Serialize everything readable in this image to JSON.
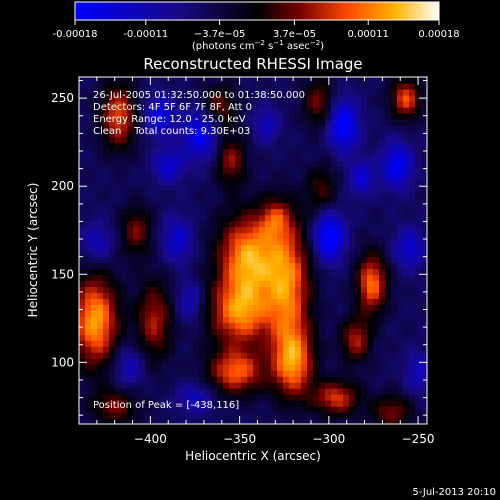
{
  "chart_data": {
    "type": "heatmap",
    "title": "Reconstructed RHESSI Image",
    "xlabel": "Heliocentric X (arcsec)",
    "ylabel": "Heliocentric Y (arcsec)",
    "xlim": [
      -440,
      -245
    ],
    "ylim": [
      65,
      262
    ],
    "xticks": [
      -400,
      -350,
      -300,
      -250
    ],
    "yticks": [
      100,
      150,
      200,
      250
    ],
    "colorbar": {
      "range": [
        -0.00018,
        0.00018
      ],
      "tick_values": [
        -0.00018,
        -0.00011,
        -3.7e-05,
        3.7e-05,
        0.00011,
        0.00018
      ],
      "tick_labels": [
        "-0.00018",
        "-0.00011",
        "−3.7e−05",
        "3.7e−05",
        "0.00011",
        "0.00018"
      ],
      "unit_main": "(photons cm",
      "unit_exp1": "−2",
      "unit_mid": " s",
      "unit_exp2": "−1",
      "unit_tail": " asec",
      "unit_exp3": "−2",
      "unit_close": ")",
      "colors": [
        "#0000ff",
        "#1a0a8a",
        "#000000",
        "#7a0000",
        "#ff4a00",
        "#ffb400",
        "#ffffff"
      ]
    },
    "annotations": {
      "line1": "26-Jul-2005 01:32:50.000 to 01:38:50.000",
      "line2": "Detectors: 4F 5F 6F 7F 8F, Att 0",
      "line3": "Energy Range: 12.0 - 25.0 keV",
      "line4": "Clean    Total counts: 9.30E+03",
      "peak": "Position of Peak = [-438,116]"
    },
    "timestamp": "5-Jul-2013 20:10",
    "blobs": [
      {
        "x": -431,
        "y": 124,
        "sx": 9,
        "sy": 18,
        "v": 1.0
      },
      {
        "x": -398,
        "y": 124,
        "sx": 7,
        "sy": 16,
        "v": 0.6
      },
      {
        "x": -418,
        "y": 240,
        "sx": 7,
        "sy": 13,
        "v": 0.75
      },
      {
        "x": -408,
        "y": 175,
        "sx": 6,
        "sy": 10,
        "v": 0.5
      },
      {
        "x": -345,
        "y": 160,
        "sx": 12,
        "sy": 17,
        "v": 1.0
      },
      {
        "x": -350,
        "y": 128,
        "sx": 12,
        "sy": 13,
        "v": 0.85
      },
      {
        "x": -352,
        "y": 95,
        "sx": 11,
        "sy": 9,
        "v": 0.8
      },
      {
        "x": -323,
        "y": 144,
        "sx": 9,
        "sy": 26,
        "v": 0.85
      },
      {
        "x": -320,
        "y": 100,
        "sx": 8,
        "sy": 14,
        "v": 0.85
      },
      {
        "x": -355,
        "y": 215,
        "sx": 6,
        "sy": 10,
        "v": 0.55
      },
      {
        "x": -362,
        "y": 245,
        "sx": 7,
        "sy": 9,
        "v": 0.5
      },
      {
        "x": -306,
        "y": 248,
        "sx": 6,
        "sy": 10,
        "v": 0.5
      },
      {
        "x": -304,
        "y": 198,
        "sx": 6,
        "sy": 10,
        "v": 0.4
      },
      {
        "x": -276,
        "y": 145,
        "sx": 6,
        "sy": 12,
        "v": 0.85
      },
      {
        "x": -285,
        "y": 113,
        "sx": 6,
        "sy": 9,
        "v": 0.6
      },
      {
        "x": -257,
        "y": 250,
        "sx": 6,
        "sy": 8,
        "v": 0.75
      },
      {
        "x": -296,
        "y": 80,
        "sx": 9,
        "sy": 7,
        "v": 0.7
      },
      {
        "x": -265,
        "y": 72,
        "sx": 8,
        "sy": 7,
        "v": 0.5
      },
      {
        "x": -420,
        "y": 75,
        "sx": 9,
        "sy": 7,
        "v": 0.5
      },
      {
        "x": -330,
        "y": 182,
        "sx": 6,
        "sy": 8,
        "v": 0.45
      },
      {
        "x": -395,
        "y": 240,
        "sx": 6,
        "sy": 8,
        "v": -0.6
      },
      {
        "x": -372,
        "y": 230,
        "sx": 7,
        "sy": 10,
        "v": -0.7
      },
      {
        "x": -390,
        "y": 212,
        "sx": 6,
        "sy": 7,
        "v": -0.5
      },
      {
        "x": -385,
        "y": 170,
        "sx": 6,
        "sy": 9,
        "v": -0.5
      },
      {
        "x": -378,
        "y": 135,
        "sx": 5,
        "sy": 8,
        "v": -0.4
      },
      {
        "x": -300,
        "y": 172,
        "sx": 6,
        "sy": 10,
        "v": -0.85
      },
      {
        "x": -292,
        "y": 235,
        "sx": 6,
        "sy": 10,
        "v": -0.8
      },
      {
        "x": -282,
        "y": 205,
        "sx": 5,
        "sy": 7,
        "v": -0.5
      },
      {
        "x": -262,
        "y": 212,
        "sx": 6,
        "sy": 9,
        "v": -0.7
      },
      {
        "x": -255,
        "y": 165,
        "sx": 6,
        "sy": 8,
        "v": -0.5
      },
      {
        "x": -250,
        "y": 95,
        "sx": 5,
        "sy": 8,
        "v": -0.4
      },
      {
        "x": -430,
        "y": 168,
        "sx": 6,
        "sy": 8,
        "v": -0.4
      },
      {
        "x": -412,
        "y": 98,
        "sx": 6,
        "sy": 8,
        "v": -0.4
      },
      {
        "x": -375,
        "y": 80,
        "sx": 7,
        "sy": 6,
        "v": -0.4
      },
      {
        "x": -335,
        "y": 235,
        "sx": 5,
        "sy": 7,
        "v": -0.4
      }
    ]
  }
}
